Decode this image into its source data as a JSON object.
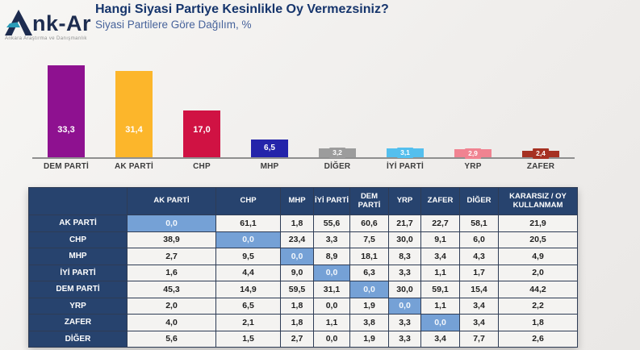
{
  "logo": {
    "name": "nk-Ar",
    "tagline": "Ankara Araştırma ve Danışmanlık",
    "mark_navy": "#1d2c4f",
    "mark_teal": "#2b9cb8"
  },
  "header": {
    "title": "Hangi Siyasi Partiye Kesinlikle Oy Vermezsiniz?",
    "subtitle": "Siyasi Partilere Göre Dağılım, %"
  },
  "chart_data": {
    "type": "bar",
    "categories": [
      "DEM PARTİ",
      "AK PARTİ",
      "CHP",
      "MHP",
      "DİĞER",
      "İYİ PARTİ",
      "YRP",
      "ZAFER"
    ],
    "values": [
      33.3,
      31.4,
      17.0,
      6.5,
      3.2,
      3.1,
      2.9,
      2.4
    ],
    "value_labels": [
      "33,3",
      "31,4",
      "17,0",
      "6,5",
      "3,2",
      "3,1",
      "2,9",
      "2,4"
    ],
    "bar_colors": [
      "#8e1190",
      "#fcb62b",
      "#d01243",
      "#2424aa",
      "#9c9c9c",
      "#54bfee",
      "#f08391",
      "#a63122"
    ],
    "title": "Hangi Siyasi Partiye Kesinlikle Oy Vermezsiniz?",
    "xlabel": "",
    "ylabel": "",
    "ylim": [
      0,
      34
    ],
    "grid": false,
    "legend": false,
    "axis_line_color": "#8f8f8f",
    "value_label_color": "#ffffff"
  },
  "table": {
    "col_headers": [
      "",
      "AK PARTİ",
      "CHP",
      "MHP",
      "İYİ PARTİ",
      "DEM PARTİ",
      "YRP",
      "ZAFER",
      "DİĞER",
      "KARARSIZ / OY KULLANMAM"
    ],
    "rows": [
      {
        "label": "AK PARTİ",
        "values": [
          "0,0",
          "61,1",
          "1,8",
          "55,6",
          "60,6",
          "21,7",
          "22,7",
          "58,1",
          "21,9"
        ],
        "highlight": 0
      },
      {
        "label": "CHP",
        "values": [
          "38,9",
          "0,0",
          "23,4",
          "3,3",
          "7,5",
          "30,0",
          "9,1",
          "6,0",
          "20,5"
        ],
        "highlight": 1
      },
      {
        "label": "MHP",
        "values": [
          "2,7",
          "9,5",
          "0,0",
          "8,9",
          "18,1",
          "8,3",
          "3,4",
          "4,3",
          "4,9"
        ],
        "highlight": 2
      },
      {
        "label": "İYİ PARTİ",
        "values": [
          "1,6",
          "4,4",
          "9,0",
          "0,0",
          "6,3",
          "3,3",
          "1,1",
          "1,7",
          "2,0"
        ],
        "highlight": 3
      },
      {
        "label": "DEM PARTİ",
        "values": [
          "45,3",
          "14,9",
          "59,5",
          "31,1",
          "0,0",
          "30,0",
          "59,1",
          "15,4",
          "44,2"
        ],
        "highlight": 4
      },
      {
        "label": "YRP",
        "values": [
          "2,0",
          "6,5",
          "1,8",
          "0,0",
          "1,9",
          "0,0",
          "1,1",
          "3,4",
          "2,2"
        ],
        "highlight": 5
      },
      {
        "label": "ZAFER",
        "values": [
          "4,0",
          "2,1",
          "1,8",
          "1,1",
          "3,8",
          "3,3",
          "0,0",
          "3,4",
          "1,8"
        ],
        "highlight": 6
      },
      {
        "label": "DİĞER",
        "values": [
          "5,6",
          "1,5",
          "2,7",
          "0,0",
          "1,9",
          "3,3",
          "3,4",
          "7,7",
          "2,6"
        ],
        "highlight": -1
      }
    ],
    "colors": {
      "header_bg": "#27436e",
      "cell_bg": "#f4f3f1",
      "highlight_bg": "#75a1d6",
      "border": "#2e3c55"
    }
  }
}
